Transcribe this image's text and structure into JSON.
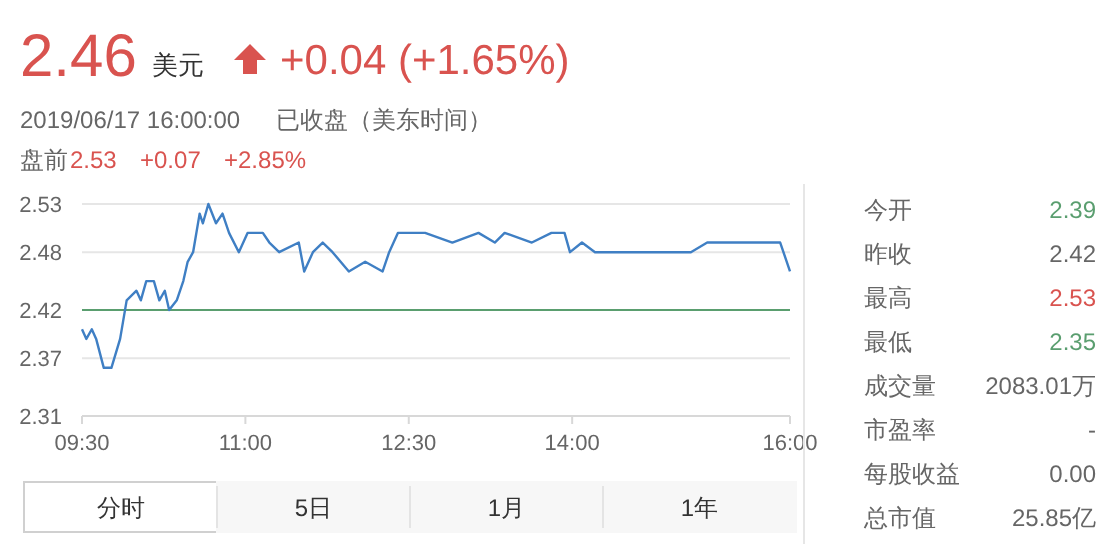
{
  "chart_data": [
    {
      "type": "line",
      "title": "2.46",
      "subtitle": "2019/06/17 16:00:00",
      "annotations": [
        "美元",
        "+0.04 (+1.65%)",
        "已收盘（美东时间）",
        "盘前",
        "2.53",
        "+0.07",
        "+2.85%",
        "分时",
        "5日",
        "1月",
        "1年"
      ],
      "xlim": [
        9.5,
        16
      ],
      "xticks": [
        {
          "value": 9.5,
          "label": "09:30"
        },
        {
          "value": 11,
          "label": "11:00"
        },
        {
          "value": 12.5,
          "label": "12:30"
        },
        {
          "value": 14,
          "label": "14:00"
        },
        {
          "value": 16,
          "label": "16:00"
        }
      ],
      "ylim": [
        2.31,
        2.53
      ],
      "yticks": [
        2.31,
        2.37,
        2.42,
        2.48,
        2.53
      ],
      "grid": "y",
      "ref_lines": [
        {
          "axis": "y",
          "value": 2.42,
          "color": "#5a9e6f"
        }
      ],
      "series": [
        {
          "color": "#3f7fc4",
          "x": [
            9.5,
            9.54,
            9.59,
            9.63,
            9.7,
            9.77,
            9.85,
            9.91,
            10.0,
            10.04,
            10.09,
            10.16,
            10.21,
            10.26,
            10.3,
            10.37,
            10.43,
            10.47,
            10.52,
            10.58,
            10.61,
            10.66,
            10.73,
            10.79,
            10.85,
            10.94,
            11.02,
            11.16,
            11.22,
            11.31,
            11.49,
            11.54,
            11.62,
            11.71,
            11.8,
            11.95,
            12.1,
            12.26,
            12.32,
            12.4,
            12.65,
            12.9,
            13.14,
            13.29,
            13.38,
            13.63,
            13.81,
            13.93,
            13.98,
            14.09,
            14.21,
            15.09,
            15.24,
            15.82,
            15.91,
            16.0
          ],
          "values": [
            2.4,
            2.39,
            2.4,
            2.39,
            2.36,
            2.36,
            2.39,
            2.43,
            2.44,
            2.43,
            2.45,
            2.45,
            2.43,
            2.44,
            2.42,
            2.43,
            2.45,
            2.47,
            2.48,
            2.52,
            2.51,
            2.53,
            2.51,
            2.52,
            2.5,
            2.48,
            2.5,
            2.5,
            2.49,
            2.48,
            2.49,
            2.46,
            2.48,
            2.49,
            2.48,
            2.46,
            2.47,
            2.46,
            2.48,
            2.5,
            2.5,
            2.49,
            2.5,
            2.49,
            2.5,
            2.49,
            2.5,
            2.5,
            2.48,
            2.49,
            2.48,
            2.48,
            2.49,
            2.49,
            2.49,
            2.46
          ]
        }
      ]
    },
    {
      "type": "other",
      "annotations": [
        "今开",
        "2.39",
        "昨收",
        "2.42",
        "最高",
        "2.53",
        "最低",
        "2.35",
        "成交量",
        "2083.01万",
        "市盈率",
        "-",
        "每股收益",
        "0.00",
        "总市值",
        "25.85亿"
      ],
      "colors": [
        "#5a9e6f",
        "#666666",
        "#d9534f",
        "#5a9e6f",
        "#666666",
        "#666666",
        "#666666",
        "#666666"
      ]
    }
  ]
}
